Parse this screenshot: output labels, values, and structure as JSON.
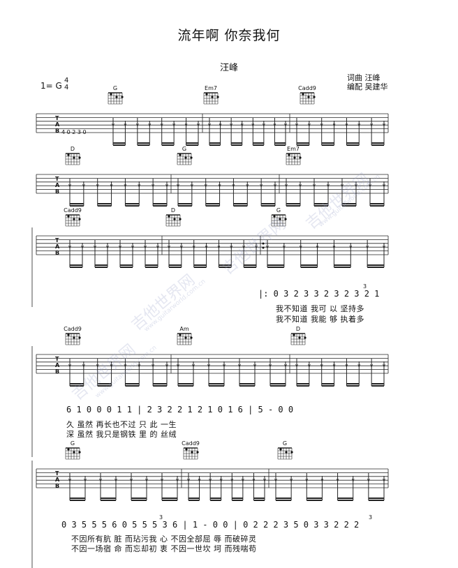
{
  "header": {
    "title": "流年啊 你奈我何",
    "artist": "汪峰",
    "credits_line1": "词曲  汪峰",
    "credits_line2": "编配  吴建华",
    "key": "1= G",
    "time_top": "4",
    "time_bottom": "4"
  },
  "tab_letters": [
    "T",
    "A",
    "B"
  ],
  "intro_tab_numbers": "4  0 2 3  0",
  "rows": [
    {
      "chords": [
        "G",
        "Em7",
        "Cadd9"
      ]
    },
    {
      "chords": [
        "D",
        "G",
        "Em7"
      ]
    },
    {
      "chords": [
        "Cadd9",
        "D",
        "G"
      ]
    },
    {
      "chords": [
        "Cadd9",
        "Am",
        "D"
      ]
    },
    {
      "chords": [
        "G",
        "Cadd9",
        "G"
      ]
    }
  ],
  "notation": {
    "line1": {
      "numbers": "|: 0 3 2 3 3  2 3  2   3 2 1",
      "lyric1": "我不知道 我可 以 坚持多",
      "lyric2": "我不知道 我能 够 执着多",
      "triplet": "3"
    },
    "line2": {
      "numbers": "6 1  0   0   0 1 1 | 2 3 2 2 1  2  1  0 1 6 | 5  -  0   0",
      "lyric1": "久              虽然  再长也不过 只  此    一生",
      "lyric2": "深              虽然  我只是钢铁 里  的    丝绒"
    },
    "line3": {
      "numbers": "0 3 5 5 5 6 0 5  5 5 3 6 | 1  -  0   0 | 0 2 2 2 3 5 0 3  3 2 2 2",
      "lyric1": "不因所有肮  脏  而玷污我      心            不因全部屈  辱  而破碎灵",
      "lyric2": "不因一场宿  命  而忘却初      衷            不因一世坎  坷  而残喘苟",
      "triplet1": "3",
      "triplet2": "3"
    }
  },
  "watermarks": [
    "吉他世界网",
    "www.guitarworld.com.cn"
  ]
}
